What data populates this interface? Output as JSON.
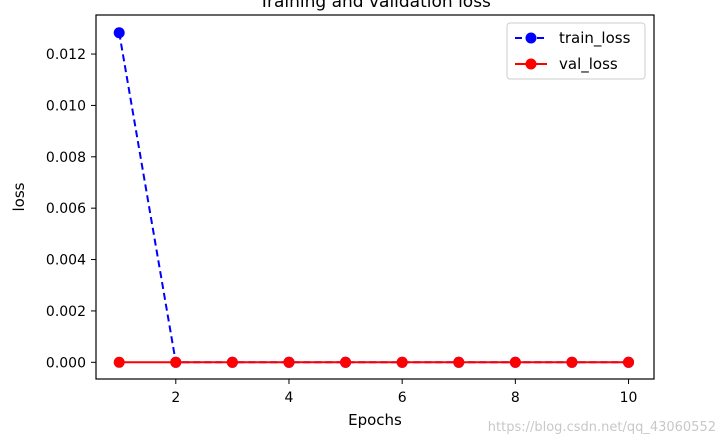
{
  "chart_data": {
    "type": "line",
    "title": "Training and validation loss",
    "xlabel": "Epochs",
    "ylabel": "loss",
    "xlim": [
      0.59,
      10.45
    ],
    "ylim": [
      -0.00065,
      0.01352
    ],
    "xticks": [
      2,
      4,
      6,
      8,
      10
    ],
    "yticks": [
      0.0,
      0.002,
      0.004,
      0.006,
      0.008,
      0.01,
      0.012
    ],
    "ytick_labels": [
      "0.000",
      "0.002",
      "0.004",
      "0.006",
      "0.008",
      "0.010",
      "0.012"
    ],
    "grid": false,
    "legend_position": "top-right",
    "x": [
      1,
      2,
      3,
      4,
      5,
      6,
      7,
      8,
      9,
      10
    ],
    "series": [
      {
        "name": "train_loss",
        "values": [
          0.01283,
          0.0,
          0.0,
          0.0,
          0.0,
          0.0,
          0.0,
          0.0,
          0.0,
          0.0
        ],
        "color": "#0000ff",
        "linestyle": "dashed",
        "marker": "circle"
      },
      {
        "name": "val_loss",
        "values": [
          0.0,
          0.0,
          0.0,
          0.0,
          0.0,
          0.0,
          0.0,
          0.0,
          0.0,
          0.0
        ],
        "color": "#ff0000",
        "linestyle": "solid",
        "marker": "circle"
      }
    ]
  },
  "watermark": "https://blog.csdn.net/qq_43060552"
}
